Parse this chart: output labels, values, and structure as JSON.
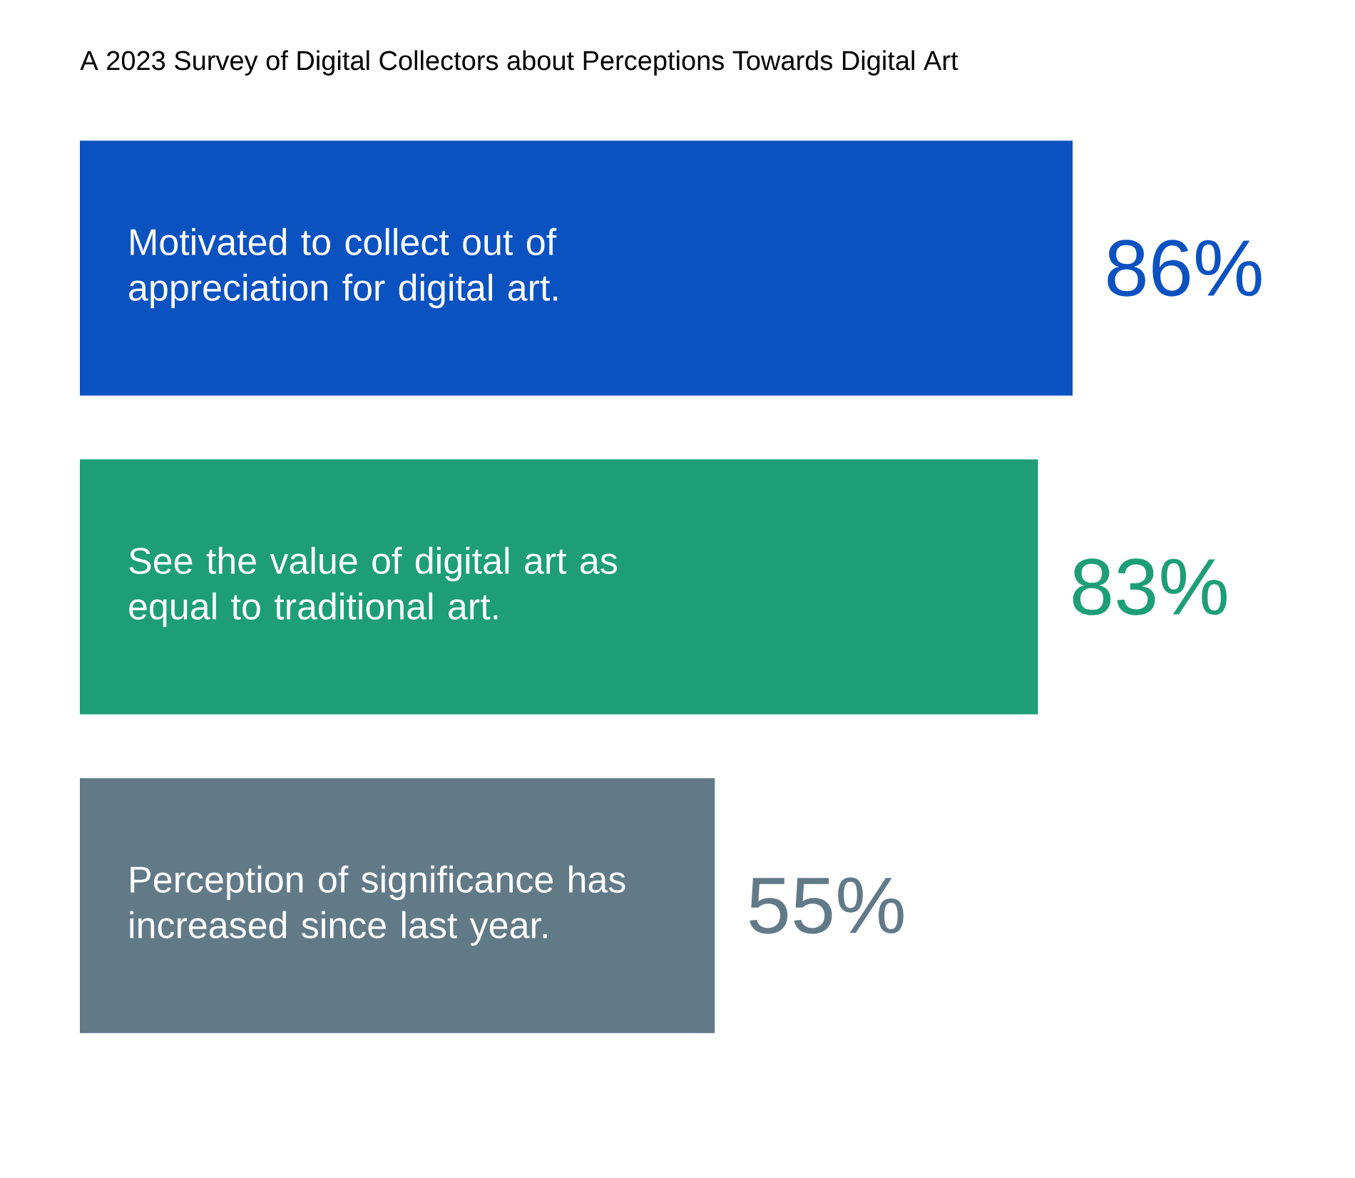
{
  "chart_data": {
    "type": "bar",
    "orientation": "horizontal",
    "title": "A 2023 Survey of Digital Collectors about Perceptions Towards Digital Art",
    "categories": [
      "Motivated to collect out of appreciation for digital art.",
      "See the value of digital art as equal to traditional art.",
      "Perception of significance has increased since last year."
    ],
    "values": [
      86,
      83,
      55
    ],
    "colors": [
      "#0b52c1",
      "#1d9e77",
      "#627a88"
    ],
    "value_labels": [
      "86%",
      "83%",
      "55%"
    ],
    "tick_labels": false
  }
}
